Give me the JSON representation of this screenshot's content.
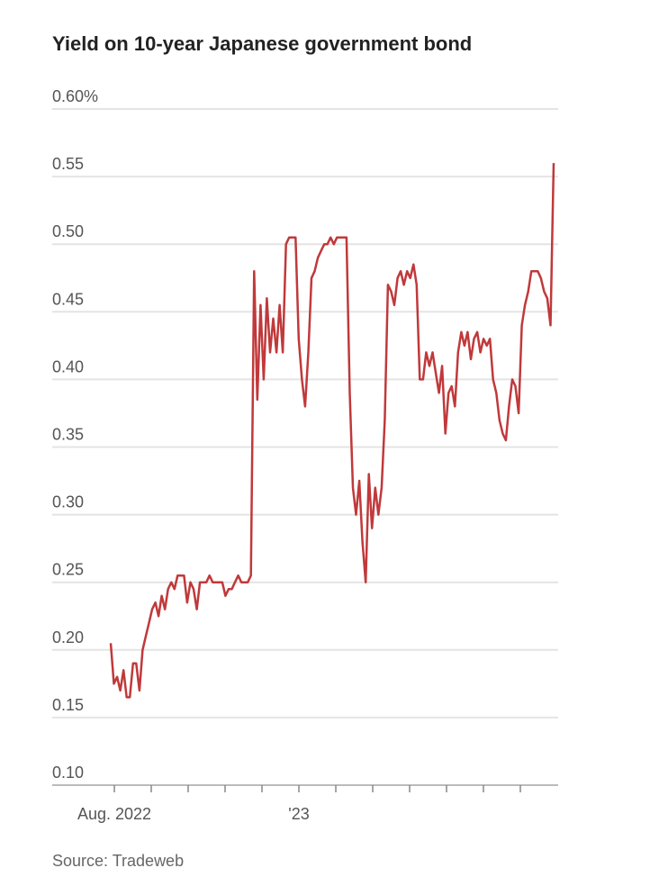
{
  "chart_data": {
    "type": "line",
    "title": "Yield on 10-year Japanese government bond",
    "source": "Source: Tradeweb",
    "color": "#c0393b",
    "ylim": [
      0.1,
      0.6
    ],
    "yticks": [
      {
        "value": 0.6,
        "label": "0.60%"
      },
      {
        "value": 0.55,
        "label": "0.55"
      },
      {
        "value": 0.5,
        "label": "0.50"
      },
      {
        "value": 0.45,
        "label": "0.45"
      },
      {
        "value": 0.4,
        "label": "0.40"
      },
      {
        "value": 0.35,
        "label": "0.35"
      },
      {
        "value": 0.3,
        "label": "0.30"
      },
      {
        "value": 0.25,
        "label": "0.25"
      },
      {
        "value": 0.2,
        "label": "0.20"
      },
      {
        "value": 0.15,
        "label": "0.15"
      },
      {
        "value": 0.1,
        "label": "0.10"
      }
    ],
    "xticks": [
      "Aug. 2022",
      null,
      null,
      null,
      null,
      "'23",
      null,
      null,
      null,
      null,
      null,
      null
    ],
    "grid": true,
    "values": [
      0.205,
      0.175,
      0.18,
      0.17,
      0.185,
      0.165,
      0.165,
      0.19,
      0.19,
      0.17,
      0.2,
      0.21,
      0.22,
      0.23,
      0.235,
      0.225,
      0.24,
      0.23,
      0.245,
      0.25,
      0.245,
      0.255,
      0.255,
      0.255,
      0.235,
      0.25,
      0.245,
      0.23,
      0.25,
      0.25,
      0.25,
      0.255,
      0.25,
      0.25,
      0.25,
      0.25,
      0.24,
      0.245,
      0.245,
      0.25,
      0.255,
      0.25,
      0.25,
      0.25,
      0.255,
      0.48,
      0.385,
      0.455,
      0.4,
      0.46,
      0.42,
      0.445,
      0.42,
      0.455,
      0.42,
      0.5,
      0.505,
      0.505,
      0.505,
      0.43,
      0.4,
      0.38,
      0.42,
      0.475,
      0.48,
      0.49,
      0.495,
      0.5,
      0.5,
      0.505,
      0.5,
      0.505,
      0.505,
      0.505,
      0.505,
      0.39,
      0.32,
      0.3,
      0.325,
      0.28,
      0.25,
      0.33,
      0.29,
      0.32,
      0.3,
      0.32,
      0.37,
      0.47,
      0.465,
      0.455,
      0.475,
      0.48,
      0.47,
      0.48,
      0.475,
      0.485,
      0.47,
      0.4,
      0.4,
      0.42,
      0.41,
      0.42,
      0.405,
      0.39,
      0.41,
      0.36,
      0.39,
      0.395,
      0.38,
      0.42,
      0.435,
      0.425,
      0.435,
      0.415,
      0.43,
      0.435,
      0.42,
      0.43,
      0.425,
      0.43,
      0.4,
      0.39,
      0.37,
      0.36,
      0.355,
      0.38,
      0.4,
      0.395,
      0.375,
      0.44,
      0.455,
      0.465,
      0.48,
      0.48,
      0.48,
      0.475,
      0.465,
      0.46,
      0.44,
      0.56
    ]
  }
}
